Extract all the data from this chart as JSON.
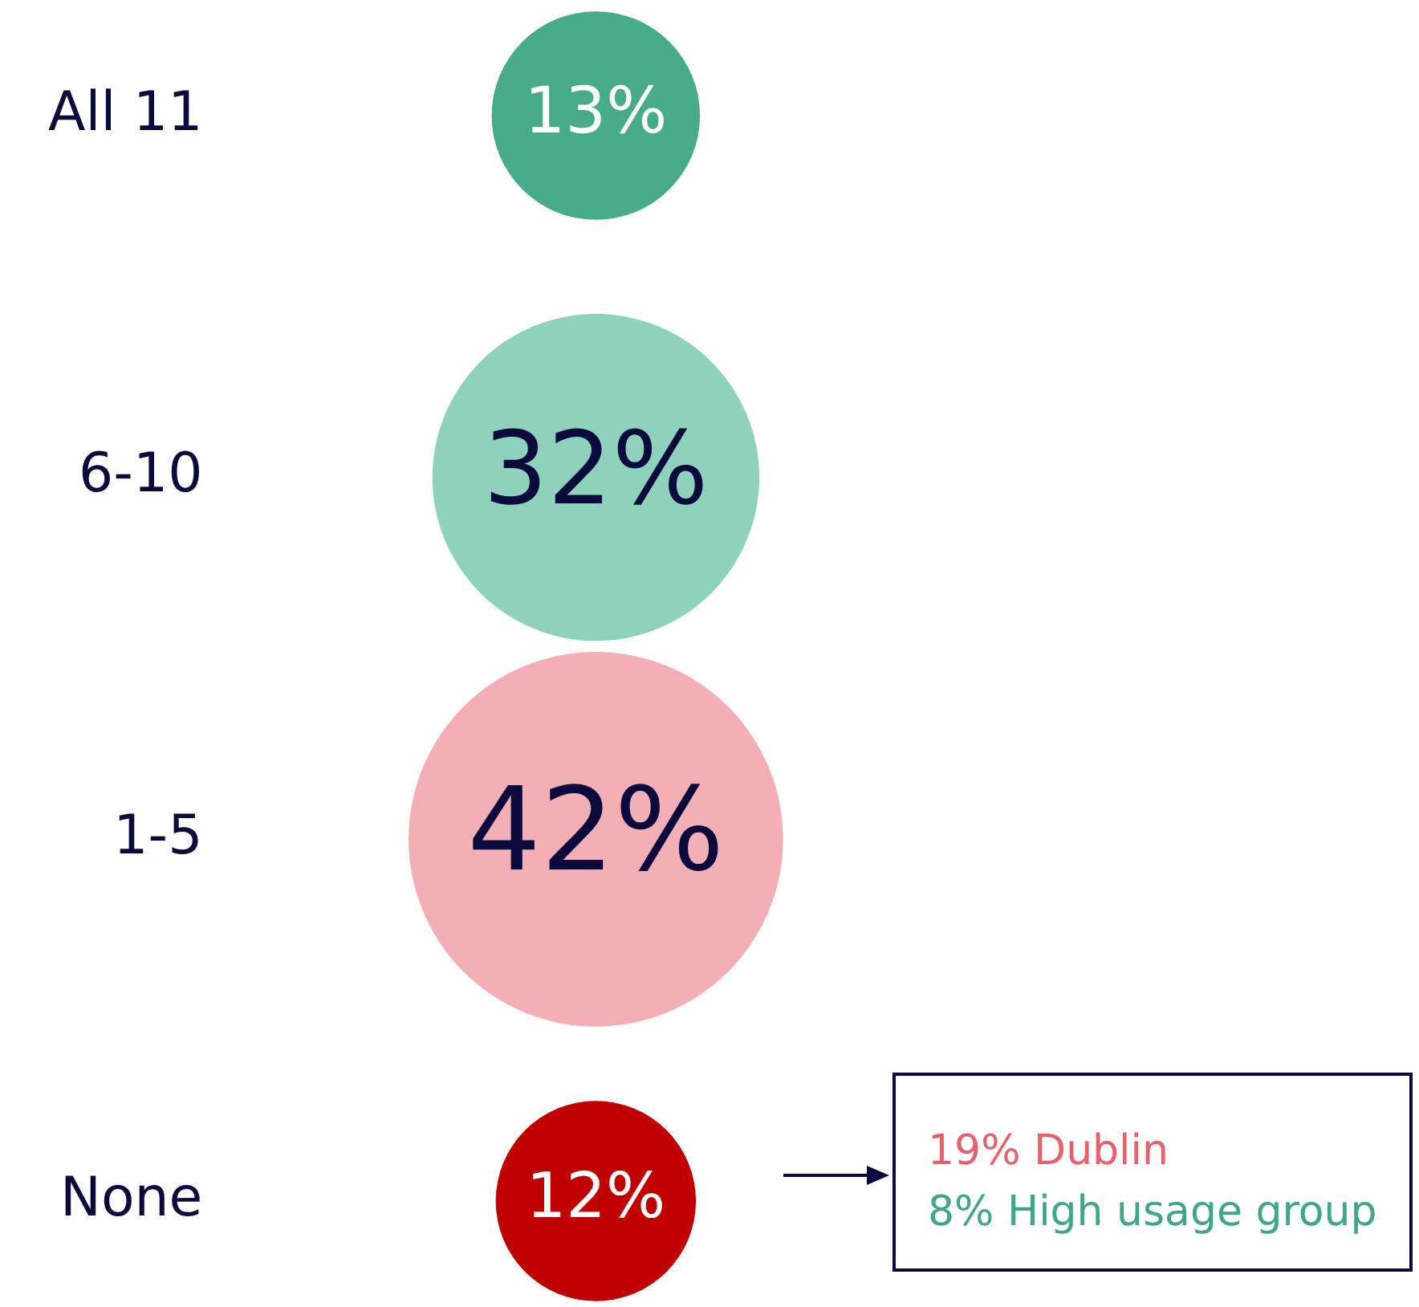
{
  "chart_data": {
    "type": "other",
    "categories": [
      "All 11",
      "6-10",
      "1-5",
      "None"
    ],
    "values": [
      13,
      32,
      42,
      12
    ],
    "colors": [
      "#47ab8a",
      "#8ed2bb",
      "#f4afb6",
      "#c00000"
    ],
    "value_labels": [
      "13%",
      "32%",
      "42%",
      "12%"
    ],
    "legend": false,
    "annotations": [
      "19% Dublin",
      "8% High usage group"
    ]
  }
}
